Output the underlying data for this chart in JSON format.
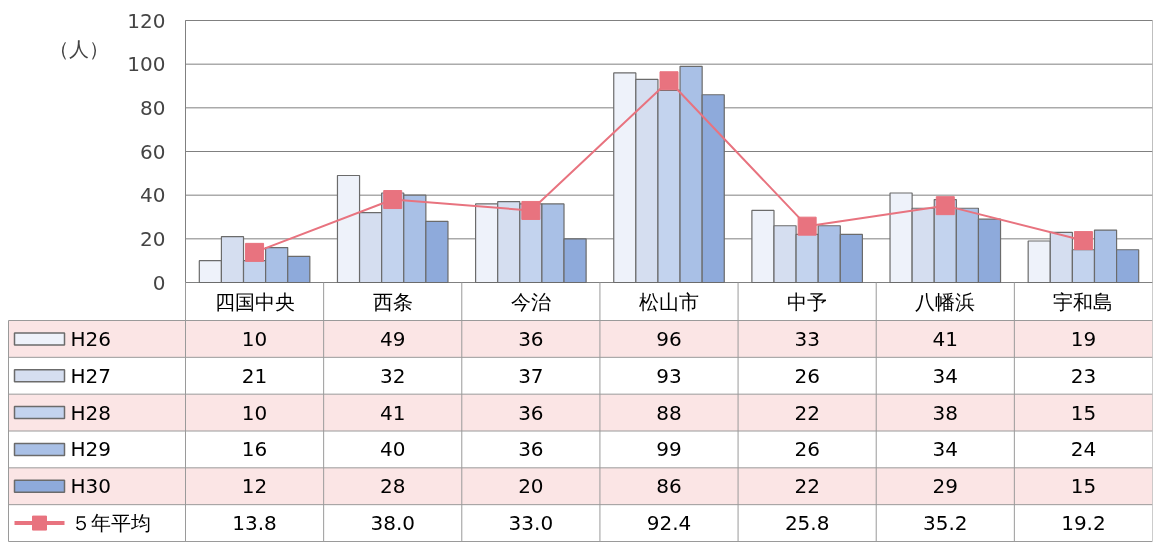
{
  "chart_data": {
    "type": "bar",
    "ylabel": "（人）",
    "categories": [
      "四国中央",
      "西条",
      "今治",
      "松山市",
      "中予",
      "八幡浜",
      "宇和島"
    ],
    "ylim": [
      0,
      120
    ],
    "yticks": [
      0,
      20,
      40,
      60,
      80,
      100,
      120
    ],
    "grid": "y",
    "legend": "bottom",
    "data_labels": true,
    "marker": "square",
    "series": [
      {
        "name": "H26",
        "color": "#eef2fa",
        "values": [
          10,
          49,
          36,
          96,
          33,
          41,
          19
        ]
      },
      {
        "name": "H27",
        "color": "#d5def0",
        "values": [
          21,
          32,
          37,
          93,
          26,
          34,
          23
        ]
      },
      {
        "name": "H28",
        "color": "#c3d3ee",
        "values": [
          10,
          41,
          36,
          88,
          22,
          38,
          15
        ]
      },
      {
        "name": "H29",
        "color": "#a9c0e6",
        "values": [
          16,
          40,
          36,
          99,
          26,
          34,
          24
        ]
      },
      {
        "name": "H30",
        "color": "#8eaadb",
        "values": [
          12,
          28,
          20,
          86,
          22,
          29,
          15
        ]
      },
      {
        "name": "５年平均",
        "type": "line",
        "color": "#e8737f",
        "values": [
          13.8,
          38.0,
          33.0,
          92.4,
          25.8,
          35.2,
          19.2
        ],
        "value_labels": [
          "13.8",
          "38.0",
          "33.0",
          "92.4",
          "25.8",
          "35.2",
          "19.2"
        ]
      }
    ]
  }
}
